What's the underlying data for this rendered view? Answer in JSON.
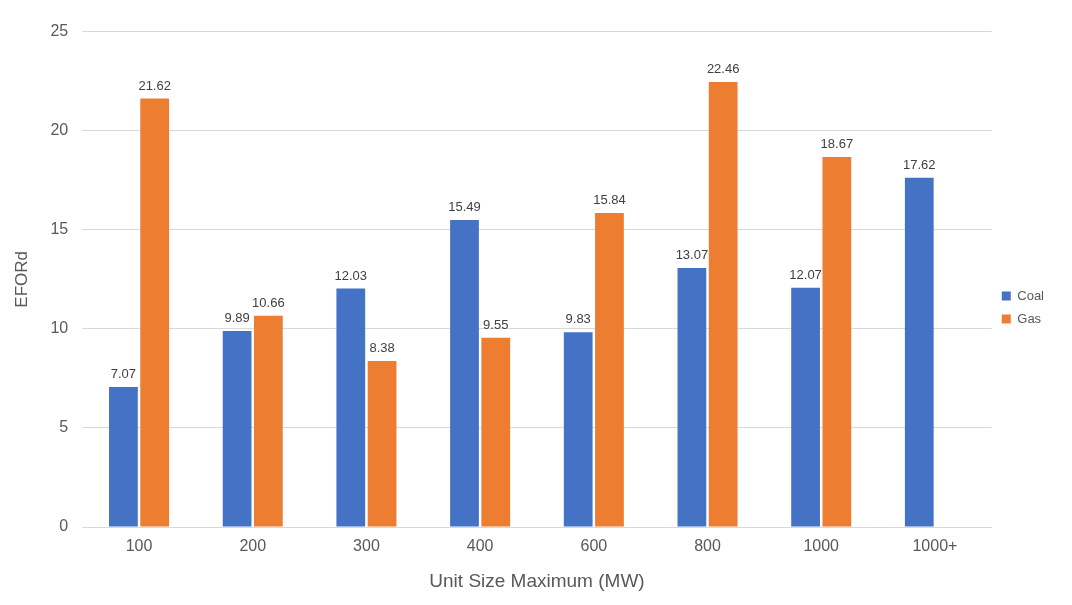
{
  "chart_data": {
    "type": "bar",
    "xlabel": "Unit Size Maximum (MW)",
    "ylabel": "EFORd",
    "categories": [
      "100",
      "200",
      "300",
      "400",
      "600",
      "800",
      "1000",
      "1000+"
    ],
    "series": [
      {
        "name": "Coal",
        "color": "#4472c4",
        "values": [
          7.07,
          9.89,
          12.03,
          15.49,
          9.83,
          13.07,
          12.07,
          17.62
        ]
      },
      {
        "name": "Gas",
        "color": "#ed7d31",
        "values": [
          21.62,
          10.66,
          8.38,
          9.55,
          15.84,
          22.46,
          18.67,
          null
        ]
      }
    ],
    "ylim": [
      0,
      25
    ],
    "yticks": [
      0,
      5,
      10,
      15,
      20,
      25
    ],
    "grid": "y",
    "legend": "right",
    "data_labels": true
  }
}
